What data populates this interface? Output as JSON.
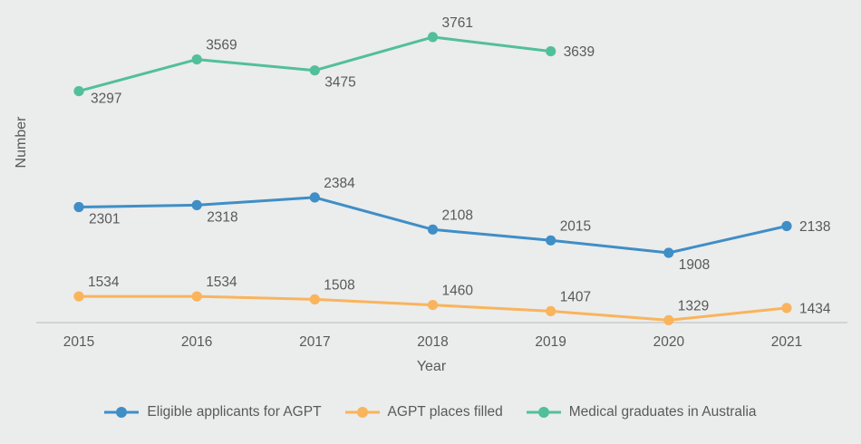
{
  "chart_data": {
    "type": "line",
    "title": "",
    "xlabel": "Year",
    "ylabel": "Number",
    "x": [
      "2015",
      "2016",
      "2017",
      "2018",
      "2019",
      "2020",
      "2021"
    ],
    "ylim": [
      1309,
      3924
    ],
    "grid": false,
    "legend_position": "bottom",
    "colors": {
      "background": "#ebecec",
      "axis_line": "#c9cbcb",
      "text": "#595959"
    },
    "series": [
      {
        "name": "Eligible applicants for AGPT",
        "color": "#3f8ec6",
        "values": [
          2301,
          2318,
          2384,
          2108,
          2015,
          1908,
          2138
        ],
        "label_positions": [
          "below",
          "below",
          "above",
          "above",
          "above",
          "below",
          "right"
        ]
      },
      {
        "name": "AGPT places filled",
        "color": "#f9b45c",
        "values": [
          1534,
          1534,
          1508,
          1460,
          1407,
          1329,
          1434
        ],
        "label_positions": [
          "above",
          "above",
          "above",
          "above",
          "above",
          "above",
          "right"
        ]
      },
      {
        "name": "Medical graduates in Australia",
        "color": "#52bf9b",
        "values": [
          3297,
          3569,
          3475,
          3761,
          3639
        ],
        "label_positions": [
          "below-near",
          "above",
          "below",
          "above",
          "right"
        ]
      }
    ]
  }
}
